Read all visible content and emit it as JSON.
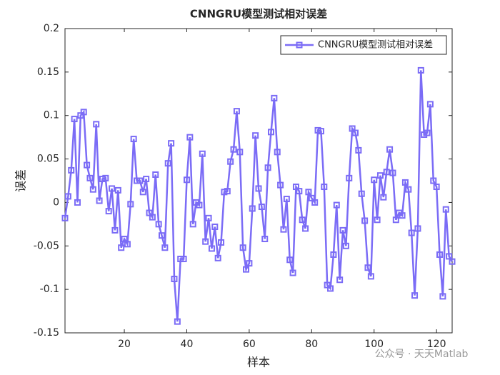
{
  "chart_data": {
    "type": "line",
    "title": "CNNGRU模型测试相对误差",
    "xlabel": "样本",
    "ylabel": "误差",
    "xlim": [
      1,
      125
    ],
    "xticks": [
      20,
      40,
      60,
      80,
      100,
      120
    ],
    "ylim": [
      -0.15,
      0.2
    ],
    "yticks": [
      -0.15,
      -0.1,
      -0.05,
      0,
      0.05,
      0.1,
      0.15,
      0.2
    ],
    "grid": false,
    "legend": "northeast",
    "series": [
      {
        "name": "CNNGRU模型测试相对误差",
        "color": "#7b6cf6",
        "values": [
          -0.018,
          0.007,
          0.037,
          0.096,
          0,
          0.1,
          0.104,
          0.043,
          0.028,
          0.015,
          0.09,
          0.002,
          0.027,
          0.028,
          -0.01,
          0.016,
          -0.032,
          0.014,
          -0.052,
          -0.042,
          -0.048,
          -0.002,
          0.073,
          0.025,
          0.025,
          0.012,
          0.027,
          -0.012,
          -0.017,
          0.032,
          -0.025,
          -0.038,
          -0.052,
          0.045,
          0.068,
          -0.088,
          -0.137,
          -0.065,
          -0.065,
          0.026,
          0.075,
          -0.025,
          0,
          -0.003,
          0.056,
          -0.045,
          -0.018,
          -0.053,
          -0.028,
          -0.064,
          -0.046,
          0.012,
          0.013,
          0.047,
          0.061,
          0.105,
          0.058,
          -0.052,
          -0.077,
          -0.07,
          -0.007,
          0.077,
          0.016,
          -0.005,
          -0.042,
          0.04,
          0.081,
          0.12,
          0.058,
          0.02,
          -0.031,
          0.004,
          -0.066,
          -0.081,
          0.018,
          0.013,
          -0.02,
          -0.03,
          0.012,
          0.005,
          0,
          0.083,
          0.082,
          0.018,
          -0.095,
          -0.099,
          -0.06,
          -0.003,
          -0.089,
          -0.032,
          -0.05,
          0.028,
          0.085,
          0.08,
          0.06,
          0.01,
          -0.021,
          -0.075,
          -0.085,
          0.026,
          -0.02,
          0.031,
          0.006,
          0.035,
          0.061,
          0.034,
          -0.02,
          -0.012,
          -0.015,
          0.023,
          0.015,
          -0.035,
          -0.107,
          -0.03,
          0.152,
          0.078,
          0.08,
          0.113,
          0.025,
          0.018,
          -0.06,
          -0.108,
          -0.008,
          -0.062,
          -0.068
        ]
      }
    ],
    "x": [
      1,
      2,
      3,
      4,
      5,
      6,
      7,
      8,
      9,
      10,
      11,
      12,
      13,
      14,
      15,
      16,
      17,
      18,
      19,
      20,
      21,
      22,
      23,
      24,
      25,
      26,
      27,
      28,
      29,
      30,
      31,
      32,
      33,
      34,
      35,
      36,
      37,
      38,
      39,
      40,
      41,
      42,
      43,
      44,
      45,
      46,
      47,
      48,
      49,
      50,
      51,
      52,
      53,
      54,
      55,
      56,
      57,
      58,
      59,
      60,
      61,
      62,
      63,
      64,
      65,
      66,
      67,
      68,
      69,
      70,
      71,
      72,
      73,
      74,
      75,
      76,
      77,
      78,
      79,
      80,
      81,
      82,
      83,
      84,
      85,
      86,
      87,
      88,
      89,
      90,
      91,
      92,
      93,
      94,
      95,
      96,
      97,
      98,
      99,
      100,
      101,
      102,
      103,
      104,
      105,
      106,
      107,
      108,
      109,
      110,
      111,
      112,
      113,
      114,
      115,
      116,
      117,
      118,
      119,
      120,
      121,
      122,
      123,
      124,
      125
    ],
    "annotations": [
      "公众号 · 天天Matlab"
    ]
  }
}
